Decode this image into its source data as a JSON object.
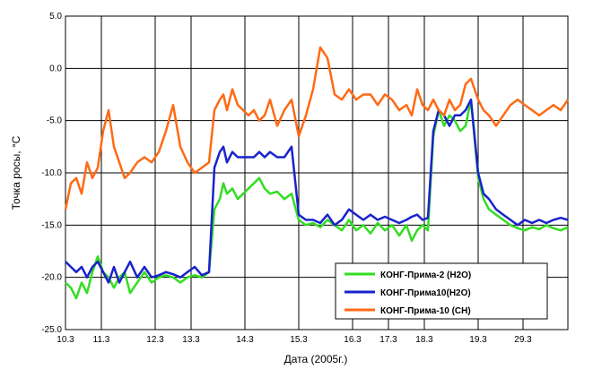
{
  "chart_data": {
    "type": "line",
    "title": "",
    "xlabel": "Дата (2005г.)",
    "ylabel": "Точка росы, °С",
    "ylim": [
      -25.0,
      5.0
    ],
    "yticks": [
      5.0,
      0.0,
      -5.0,
      -10.0,
      -15.0,
      -20.0,
      -25.0
    ],
    "ytick_labels": [
      "5.0",
      "0.0",
      "-5.0",
      "-10.0",
      "-15.0",
      "-20.0",
      "-25.0"
    ],
    "xlim": [
      0,
      28
    ],
    "xticks": [
      {
        "pos": 0,
        "label": "10.3"
      },
      {
        "pos": 2,
        "label": "11.3"
      },
      {
        "pos": 5,
        "label": "12.3"
      },
      {
        "pos": 7,
        "label": "13.3"
      },
      {
        "pos": 10,
        "label": "14.3"
      },
      {
        "pos": 13,
        "label": "15.3"
      },
      {
        "pos": 16,
        "label": "16.3"
      },
      {
        "pos": 18,
        "label": "17.3"
      },
      {
        "pos": 20,
        "label": "18.3"
      },
      {
        "pos": 23,
        "label": "19.3"
      },
      {
        "pos": 25.5,
        "label": "29.3"
      }
    ],
    "grid": true,
    "legend_position": "bottom-right",
    "series": [
      {
        "name": "КОНГ-Прима-2 (H2O)",
        "color": "#33dd22",
        "x": [
          0,
          0.3,
          0.6,
          0.9,
          1.2,
          1.5,
          1.8,
          2.1,
          2.4,
          2.7,
          3.0,
          3.3,
          3.6,
          4.0,
          4.4,
          4.8,
          5.2,
          5.6,
          6.0,
          6.4,
          6.8,
          7.2,
          7.6,
          8.0,
          8.3,
          8.6,
          8.8,
          9.0,
          9.3,
          9.6,
          9.9,
          10.2,
          10.5,
          10.8,
          11.1,
          11.4,
          11.8,
          12.2,
          12.6,
          13.0,
          13.4,
          13.8,
          14.2,
          14.6,
          15.0,
          15.4,
          15.8,
          16.2,
          16.6,
          17.0,
          17.4,
          17.8,
          18.2,
          18.6,
          19.0,
          19.3,
          19.6,
          19.9,
          20.2,
          20.5,
          20.8,
          21.1,
          21.4,
          21.7,
          22.0,
          22.3,
          22.6,
          23.0,
          23.3,
          23.6,
          24.0,
          24.4,
          24.8,
          25.2,
          25.6,
          26.0,
          26.4,
          26.8,
          27.2,
          27.6,
          28.0
        ],
        "y": [
          -20.5,
          -21.0,
          -22.0,
          -20.5,
          -21.5,
          -19.5,
          -18.0,
          -19.5,
          -20.0,
          -21.0,
          -20.0,
          -19.5,
          -21.5,
          -20.5,
          -19.5,
          -20.5,
          -20.0,
          -19.8,
          -20.0,
          -20.5,
          -20.0,
          -19.8,
          -20.0,
          -19.5,
          -13.5,
          -12.5,
          -11.0,
          -12.0,
          -11.5,
          -12.5,
          -12.0,
          -11.5,
          -11.0,
          -10.5,
          -11.5,
          -12.0,
          -11.8,
          -12.5,
          -12.0,
          -14.5,
          -15.0,
          -14.8,
          -15.2,
          -14.5,
          -15.0,
          -15.5,
          -14.5,
          -15.5,
          -15.0,
          -15.8,
          -14.8,
          -15.5,
          -15.0,
          -16.0,
          -15.0,
          -16.5,
          -15.5,
          -15.0,
          -15.5,
          -6.5,
          -4.0,
          -5.5,
          -4.5,
          -5.0,
          -6.0,
          -5.5,
          -3.0,
          -10.5,
          -12.5,
          -13.5,
          -14.0,
          -14.5,
          -15.0,
          -15.3,
          -15.5,
          -15.2,
          -15.4,
          -15.0,
          -15.3,
          -15.5,
          -15.2
        ]
      },
      {
        "name": "КОНГ-Прима10(H2O)",
        "color": "#1a22cc",
        "x": [
          0,
          0.3,
          0.6,
          0.9,
          1.2,
          1.5,
          1.8,
          2.1,
          2.4,
          2.7,
          3.0,
          3.3,
          3.6,
          4.0,
          4.4,
          4.8,
          5.2,
          5.6,
          6.0,
          6.4,
          6.8,
          7.2,
          7.6,
          8.0,
          8.3,
          8.6,
          8.8,
          9.0,
          9.3,
          9.6,
          9.9,
          10.2,
          10.5,
          10.8,
          11.1,
          11.4,
          11.8,
          12.2,
          12.6,
          13.0,
          13.4,
          13.8,
          14.2,
          14.6,
          15.0,
          15.4,
          15.8,
          16.2,
          16.6,
          17.0,
          17.4,
          17.8,
          18.2,
          18.6,
          19.0,
          19.3,
          19.6,
          19.9,
          20.2,
          20.5,
          20.8,
          21.1,
          21.4,
          21.7,
          22.0,
          22.3,
          22.6,
          23.0,
          23.3,
          23.6,
          24.0,
          24.4,
          24.8,
          25.2,
          25.6,
          26.0,
          26.4,
          26.8,
          27.2,
          27.6,
          28.0
        ],
        "y": [
          -18.5,
          -19.0,
          -19.5,
          -19.0,
          -20.0,
          -19.0,
          -18.5,
          -19.5,
          -20.5,
          -19.0,
          -20.5,
          -19.5,
          -18.5,
          -20.0,
          -19.0,
          -20.0,
          -19.8,
          -19.5,
          -19.7,
          -20.0,
          -19.5,
          -19.0,
          -19.8,
          -19.5,
          -9.5,
          -8.0,
          -7.5,
          -9.0,
          -8.0,
          -8.5,
          -8.5,
          -8.5,
          -8.5,
          -8.0,
          -8.5,
          -8.0,
          -8.5,
          -8.5,
          -7.5,
          -14.0,
          -14.5,
          -14.5,
          -14.8,
          -14.0,
          -15.0,
          -14.5,
          -13.5,
          -14.0,
          -14.5,
          -14.0,
          -14.5,
          -14.2,
          -14.5,
          -14.8,
          -14.5,
          -14.2,
          -14.0,
          -14.5,
          -14.3,
          -6.0,
          -4.0,
          -4.5,
          -5.5,
          -4.5,
          -4.5,
          -4.0,
          -3.0,
          -10.0,
          -12.0,
          -12.5,
          -13.5,
          -14.0,
          -14.5,
          -15.0,
          -14.5,
          -14.8,
          -14.5,
          -14.8,
          -14.5,
          -14.3,
          -14.5
        ]
      },
      {
        "name": "КОНГ-Прима-10 (CH)",
        "color": "#ff6a14",
        "x": [
          0,
          0.3,
          0.6,
          0.9,
          1.2,
          1.5,
          1.8,
          2.1,
          2.4,
          2.7,
          3.0,
          3.3,
          3.6,
          4.0,
          4.4,
          4.8,
          5.2,
          5.6,
          6.0,
          6.4,
          6.8,
          7.2,
          7.6,
          8.0,
          8.3,
          8.6,
          8.8,
          9.0,
          9.3,
          9.6,
          9.9,
          10.2,
          10.5,
          10.8,
          11.1,
          11.4,
          11.8,
          12.2,
          12.6,
          13.0,
          13.4,
          13.8,
          14.2,
          14.6,
          15.0,
          15.4,
          15.8,
          16.2,
          16.6,
          17.0,
          17.4,
          17.8,
          18.2,
          18.6,
          19.0,
          19.3,
          19.6,
          19.9,
          20.2,
          20.5,
          20.8,
          21.1,
          21.4,
          21.7,
          22.0,
          22.3,
          22.6,
          23.0,
          23.3,
          23.6,
          24.0,
          24.4,
          24.8,
          25.2,
          25.6,
          26.0,
          26.4,
          26.8,
          27.2,
          27.6,
          28.0
        ],
        "y": [
          -13.5,
          -11.0,
          -10.5,
          -12.0,
          -9.0,
          -10.5,
          -9.5,
          -6.0,
          -4.0,
          -7.5,
          -9.0,
          -10.5,
          -10.0,
          -9.0,
          -8.5,
          -9.0,
          -8.0,
          -6.0,
          -3.5,
          -7.5,
          -9.0,
          -10.0,
          -9.5,
          -9.0,
          -4.0,
          -3.0,
          -2.5,
          -4.0,
          -2.0,
          -3.5,
          -4.0,
          -4.5,
          -4.0,
          -5.0,
          -4.5,
          -3.0,
          -5.5,
          -4.0,
          -3.0,
          -6.5,
          -4.5,
          -2.0,
          2.0,
          1.0,
          -2.5,
          -3.0,
          -2.0,
          -3.0,
          -2.5,
          -2.5,
          -3.5,
          -2.5,
          -3.0,
          -4.0,
          -3.5,
          -4.5,
          -2.0,
          -3.5,
          -4.0,
          -3.0,
          -4.0,
          -4.5,
          -3.0,
          -4.0,
          -3.5,
          -1.5,
          -1.0,
          -3.0,
          -4.0,
          -4.5,
          -5.5,
          -4.5,
          -3.5,
          -3.0,
          -3.5,
          -4.0,
          -4.5,
          -4.0,
          -3.5,
          -4.0,
          -3.0
        ]
      }
    ]
  }
}
